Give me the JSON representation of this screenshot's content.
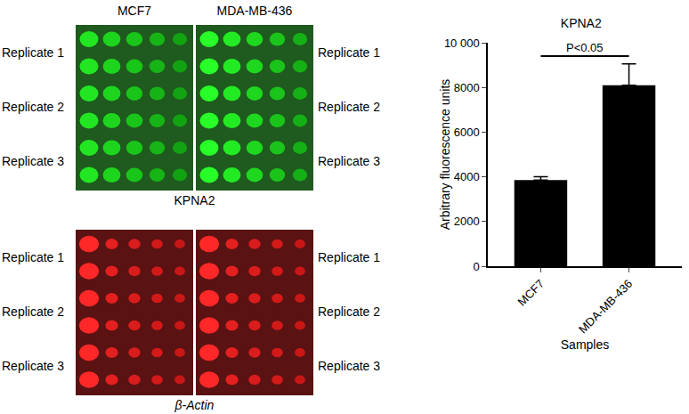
{
  "chart_data": {
    "type": "bar",
    "title": "KPNA2",
    "categories": [
      "MCF7",
      "MDA-MB-436"
    ],
    "values": [
      3850,
      8100
    ],
    "errors": [
      150,
      950
    ],
    "color": "#000000",
    "x_label": "Samples",
    "y_label": "Arbitrary fluorescence units",
    "ylim": [
      0,
      10000
    ],
    "yticks": [
      0,
      2000,
      4000,
      6000,
      8000,
      {
        "value": 10000,
        "label": "10 000"
      }
    ],
    "annotations": [
      "P<0.05"
    ],
    "grid": false
  },
  "blots": {
    "samples": [
      "MCF7",
      "MDA-MB-436"
    ],
    "rows": [
      "Replicate 1",
      "Replicate 2",
      "Replicate 3"
    ],
    "panels": [
      {
        "title": "KPNA2",
        "color": "green"
      },
      {
        "title": "β-Actin",
        "color": "red"
      }
    ]
  }
}
